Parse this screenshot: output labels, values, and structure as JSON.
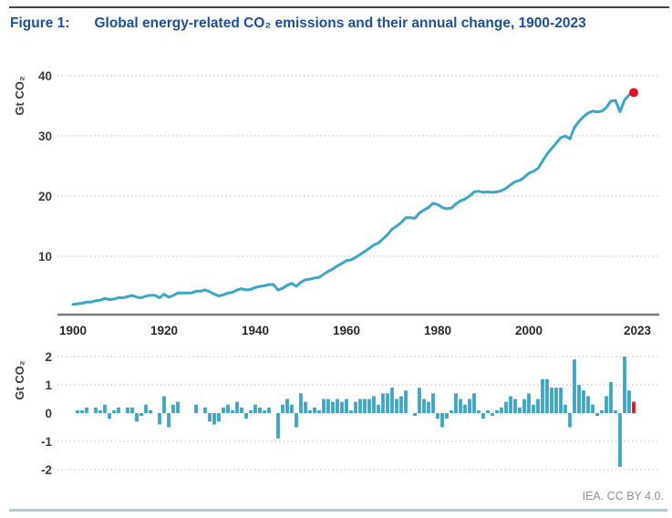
{
  "figure": {
    "label": "Figure 1:",
    "title": "Global energy-related CO₂ emissions and their annual change, 1900-2023",
    "credit": "IEA. CC BY 4.0."
  },
  "colors": {
    "series_teal": "#3BA7C5",
    "highlight_red": "#E8121D",
    "title_blue": "#1C4E9D",
    "tick_text": "#3C3C3C",
    "axis_gray": "#7A7A7A",
    "grid_gray": "#CBCBCB",
    "credit_gray": "#8E9294",
    "top_rule": "#454545",
    "bottom_rule": "#B6C8D8"
  },
  "chart_data": [
    {
      "type": "line",
      "title": "Global energy-related CO2 emissions, 1900-2023",
      "ylabel": "Gt CO₂",
      "unit": "Gt CO2",
      "year_start": 1900,
      "year_end": 2023,
      "x_ticks": [
        1900,
        1920,
        1940,
        1960,
        1980,
        2000,
        2023
      ],
      "y_ticks": [
        10,
        20,
        30,
        40
      ],
      "ylim": [
        0,
        42
      ],
      "grid": "horizontal-dotted",
      "endpoint_marker": {
        "year": 2023,
        "value": 37.2,
        "color": "red"
      },
      "values": [
        2.0,
        2.1,
        2.2,
        2.4,
        2.4,
        2.6,
        2.7,
        3.0,
        2.8,
        2.9,
        3.1,
        3.1,
        3.3,
        3.5,
        3.2,
        3.1,
        3.4,
        3.5,
        3.5,
        3.1,
        3.7,
        3.2,
        3.5,
        3.9,
        3.9,
        3.9,
        3.9,
        4.2,
        4.2,
        4.4,
        4.1,
        3.7,
        3.4,
        3.6,
        3.9,
        4.0,
        4.4,
        4.6,
        4.4,
        4.5,
        4.8,
        5.0,
        5.1,
        5.3,
        5.3,
        4.4,
        4.7,
        5.2,
        5.5,
        5.0,
        5.7,
        6.1,
        6.2,
        6.4,
        6.5,
        7.0,
        7.5,
        7.9,
        8.4,
        8.8,
        9.3,
        9.4,
        9.8,
        10.3,
        10.8,
        11.3,
        11.9,
        12.2,
        12.9,
        13.6,
        14.5,
        15.0,
        15.6,
        16.4,
        16.4,
        16.3,
        17.2,
        17.7,
        18.1,
        18.8,
        18.6,
        18.1,
        17.9,
        18.0,
        18.7,
        19.2,
        19.5,
        20.0,
        20.7,
        20.8,
        20.6,
        20.7,
        20.6,
        20.7,
        20.9,
        21.3,
        21.9,
        22.4,
        22.6,
        23.1,
        23.8,
        24.1,
        24.6,
        25.8,
        27.0,
        27.9,
        28.8,
        29.7,
        30.0,
        29.5,
        31.4,
        32.4,
        33.2,
        33.8,
        34.1,
        34.0,
        34.1,
        34.7,
        35.8,
        35.9,
        34.0,
        36.0,
        36.8,
        37.2
      ]
    },
    {
      "type": "bar",
      "title": "Annual change in global energy-related CO2 emissions, 1901-2023",
      "ylabel": "Gt CO₂",
      "unit": "Gt CO2",
      "year_start": 1901,
      "year_end": 2023,
      "y_ticks": [
        2,
        1,
        0,
        -1,
        -2
      ],
      "ylim": [
        -2.2,
        2.2
      ],
      "grid": "horizontal-dotted",
      "highlight_last_bar": {
        "year": 2023,
        "value": 0.4,
        "color": "red"
      },
      "values": [
        0.1,
        0.1,
        0.2,
        0.0,
        0.2,
        0.1,
        0.3,
        -0.2,
        0.1,
        0.2,
        0.0,
        0.2,
        0.2,
        -0.3,
        -0.1,
        0.3,
        0.1,
        0.0,
        -0.4,
        0.6,
        -0.5,
        0.3,
        0.4,
        0.0,
        0.0,
        0.0,
        0.3,
        0.0,
        0.2,
        -0.3,
        -0.4,
        -0.3,
        0.2,
        0.3,
        0.1,
        0.4,
        0.2,
        -0.2,
        0.1,
        0.3,
        0.2,
        0.1,
        0.2,
        0.0,
        -0.9,
        0.3,
        0.5,
        0.3,
        -0.5,
        0.7,
        0.4,
        0.1,
        0.2,
        0.1,
        0.5,
        0.5,
        0.4,
        0.5,
        0.4,
        0.5,
        0.1,
        0.4,
        0.5,
        0.5,
        0.5,
        0.6,
        0.3,
        0.7,
        0.7,
        0.9,
        0.5,
        0.6,
        0.8,
        0.0,
        -0.1,
        0.9,
        0.5,
        0.4,
        0.7,
        -0.2,
        -0.5,
        -0.2,
        0.1,
        0.7,
        0.5,
        0.3,
        0.5,
        0.7,
        0.1,
        -0.2,
        0.1,
        -0.1,
        0.1,
        0.2,
        0.4,
        0.6,
        0.5,
        0.2,
        0.5,
        0.7,
        0.3,
        0.5,
        1.2,
        1.2,
        0.9,
        0.9,
        0.9,
        0.3,
        -0.5,
        1.9,
        1.0,
        0.8,
        0.6,
        0.3,
        -0.1,
        0.1,
        0.6,
        1.1,
        0.1,
        -1.9,
        2.0,
        0.8,
        0.4
      ]
    }
  ]
}
